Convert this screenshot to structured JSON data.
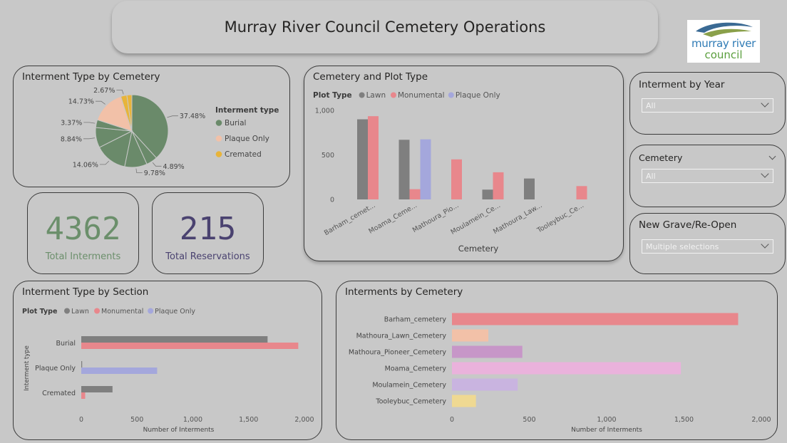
{
  "header": {
    "title": "Murray River Council Cemetery Operations"
  },
  "logo": {
    "line1": "murray river",
    "line2": "council"
  },
  "kpis": {
    "total_interments": {
      "value": "4362",
      "label": "Total Interments",
      "color": "#6b8f6b"
    },
    "total_reservations": {
      "value": "215",
      "label": "Total Reservations",
      "color": "#4a4270"
    }
  },
  "slicers": {
    "year": {
      "title": "Interment by Year",
      "value": "All"
    },
    "cemetery": {
      "title": "Cemetery",
      "value": "All"
    },
    "grave": {
      "title": "New Grave/Re-Open",
      "value": "Multiple selections"
    }
  },
  "colors": {
    "lawn": "#7f7f7f",
    "monumental": "#e8878c",
    "plaque_only": "#a4a7dc",
    "burial": "#6a8a6a",
    "plaque_only_pie": "#f2c1a8",
    "cremated": "#e8b43a"
  },
  "chart_data": [
    {
      "id": "pie",
      "type": "pie",
      "title": "Interment Type by Cemetery",
      "legend_title": "Interment type",
      "legend": [
        "Burial",
        "Plaque Only",
        "Cremated"
      ],
      "legend_colors": [
        "#6a8a6a",
        "#f2c1a8",
        "#e8b43a"
      ],
      "slices": [
        {
          "type": "Burial",
          "value": 37.48,
          "label": "37.48%",
          "color": "#6a8a6a"
        },
        {
          "type": "Burial",
          "value": 4.89,
          "label": "4.89%",
          "color": "#6a8a6a"
        },
        {
          "type": "Burial",
          "value": 9.78,
          "label": "9.78%",
          "color": "#6a8a6a"
        },
        {
          "type": "Burial",
          "value": 14.06,
          "label": "14.06%",
          "color": "#6a8a6a"
        },
        {
          "type": "Burial",
          "value": 8.84,
          "label": "8.84%",
          "color": "#6a8a6a"
        },
        {
          "type": "Burial",
          "value": 3.37,
          "label": "3.37%",
          "color": "#6a8a6a"
        },
        {
          "type": "Plaque Only",
          "value": 14.73,
          "label": "14.73%",
          "color": "#f2c1a8"
        },
        {
          "type": "Cremated",
          "value": 2.67,
          "label": "2.67%",
          "color": "#e8b43a"
        },
        {
          "type": "Cremated",
          "value": 2.18,
          "label": "",
          "color": "#e8b43a"
        }
      ]
    },
    {
      "id": "plot",
      "type": "bar",
      "title": "Cemetery and Plot Type",
      "legend_title": "Plot Type",
      "xlabel": "Cemetery",
      "categories": [
        "Barham_cemet...",
        "Moama_Ceme...",
        "Mathoura_Pio...",
        "Moulamein_Ce...",
        "Mathoura_Law...",
        "Tooleybuc_Ce..."
      ],
      "yticks": [
        0,
        500,
        1000
      ],
      "ytick_labels": [
        "0",
        "500",
        "1,000"
      ],
      "ylim": [
        0,
        1000
      ],
      "series": [
        {
          "name": "Lawn",
          "color": "#7f7f7f",
          "values": [
            900,
            670,
            0,
            110,
            235,
            0
          ]
        },
        {
          "name": "Monumental",
          "color": "#e8878c",
          "values": [
            935,
            115,
            450,
            305,
            0,
            150
          ]
        },
        {
          "name": "Plaque Only",
          "color": "#a4a7dc",
          "values": [
            0,
            675,
            0,
            0,
            0,
            0
          ]
        }
      ]
    },
    {
      "id": "section",
      "type": "bar",
      "orientation": "horizontal",
      "title": "Interment Type by Section",
      "legend_title": "Plot Type",
      "xlabel": "Number of Interments",
      "ylabel": "Interment type",
      "categories": [
        "Burial",
        "Plaque Only",
        "Cremated"
      ],
      "xticks": [
        0,
        500,
        1000,
        1500,
        2000
      ],
      "xtick_labels": [
        "0",
        "500",
        "1,000",
        "1,500",
        "2,000"
      ],
      "xlim": [
        0,
        2000
      ],
      "series": [
        {
          "name": "Lawn",
          "color": "#7f7f7f",
          "values": [
            1670,
            8,
            280
          ]
        },
        {
          "name": "Monumental",
          "color": "#e8878c",
          "values": [
            1945,
            0,
            35
          ]
        },
        {
          "name": "Plaque Only",
          "color": "#a4a7dc",
          "values": [
            0,
            680,
            0
          ]
        }
      ]
    },
    {
      "id": "cemetery",
      "type": "bar",
      "orientation": "horizontal",
      "title": "Interments by Cemetery",
      "xlabel": "Number of Interments",
      "categories": [
        "Barham_cemetery",
        "Mathoura_Lawn_Cemetery",
        "Mathoura_Pioneer_Cemetery",
        "Moama_Cemetery",
        "Moulamein_Cemetery",
        "Tooleybuc_Cemetery"
      ],
      "values": [
        1850,
        235,
        455,
        1480,
        425,
        155
      ],
      "colors": [
        "#e8878c",
        "#f2c1a8",
        "#c796c8",
        "#eab2dc",
        "#c9b4e0",
        "#efd992"
      ],
      "xticks": [
        0,
        500,
        1000,
        1500,
        2000
      ],
      "xtick_labels": [
        "0",
        "500",
        "1,000",
        "1,500",
        "2,000"
      ],
      "xlim": [
        0,
        2000
      ]
    }
  ]
}
